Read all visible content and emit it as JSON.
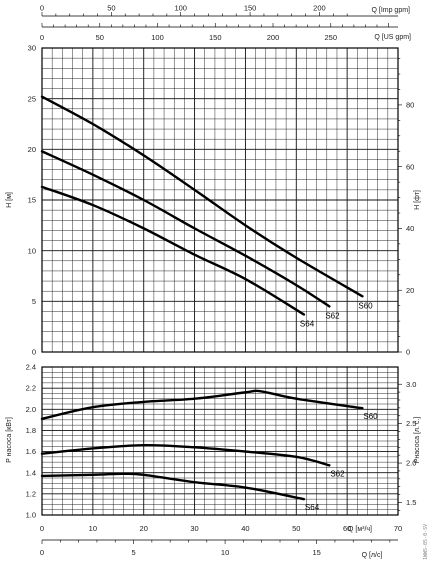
{
  "chart_data": [
    {
      "type": "line",
      "title": "",
      "xlabel": "Q [м³/ч]",
      "ylabel": "H [м]",
      "y2label": "H [фт]",
      "x2label_top": "Q [US gpm]",
      "x3label_top": "Q [Imp gpm]",
      "xlim": [
        0,
        70
      ],
      "ylim": [
        0,
        30
      ],
      "y2lim": [
        0,
        98.4
      ],
      "grid": true,
      "series": [
        {
          "name": "S60",
          "x": [
            0,
            10,
            20,
            30,
            40,
            50,
            63
          ],
          "y": [
            25.2,
            22.5,
            19.4,
            16.0,
            12.5,
            9.3,
            5.5
          ]
        },
        {
          "name": "S62",
          "x": [
            0,
            10,
            20,
            30,
            40,
            50,
            56.5
          ],
          "y": [
            19.8,
            17.5,
            15.0,
            12.2,
            9.5,
            6.6,
            4.5
          ]
        },
        {
          "name": "S64",
          "x": [
            0,
            10,
            20,
            30,
            40,
            51.5
          ],
          "y": [
            16.3,
            14.5,
            12.2,
            9.6,
            7.2,
            3.7
          ]
        }
      ]
    },
    {
      "type": "line",
      "title": "",
      "xlabel": "Q [м³/ч]",
      "x2label": "Q [л/с]",
      "ylabel": "P насоса [кВт]",
      "y2label": "Pнасоса [л. с.]",
      "xlim": [
        0,
        70
      ],
      "ylim": [
        1.0,
        2.4
      ],
      "grid": true,
      "series": [
        {
          "name": "S60",
          "x": [
            0,
            10,
            20,
            30,
            40,
            43,
            50,
            63
          ],
          "y": [
            1.91,
            2.02,
            2.07,
            2.1,
            2.16,
            2.17,
            2.1,
            2.01
          ]
        },
        {
          "name": "S62",
          "x": [
            0,
            10,
            20,
            30,
            40,
            50,
            56.5
          ],
          "y": [
            1.58,
            1.63,
            1.66,
            1.64,
            1.6,
            1.55,
            1.47
          ]
        },
        {
          "name": "S64",
          "x": [
            0,
            10,
            16,
            20,
            30,
            40,
            51.5
          ],
          "y": [
            1.37,
            1.38,
            1.39,
            1.38,
            1.31,
            1.26,
            1.15
          ]
        }
      ]
    }
  ],
  "axes": {
    "top_imp_gpm_ticks": [
      "0",
      "50",
      "100",
      "150",
      "200"
    ],
    "top_us_gpm_ticks": [
      "0",
      "50",
      "100",
      "150",
      "200",
      "250"
    ],
    "h_m_ticks": [
      "0",
      "5",
      "10",
      "15",
      "20",
      "25",
      "30"
    ],
    "h_ft_ticks": [
      "0",
      "20",
      "40",
      "60",
      "80"
    ],
    "p_kw_ticks": [
      "1.0",
      "1.2",
      "1.4",
      "1.6",
      "1.8",
      "2.0",
      "2.2",
      "2.4"
    ],
    "p_hp_ticks": [
      "1.5",
      "2.0",
      "2.5",
      "3.0"
    ],
    "q_m3h_ticks": [
      "0",
      "10",
      "20",
      "30",
      "40",
      "50",
      "60",
      "70"
    ],
    "q_ls_ticks": [
      "0",
      "5",
      "10",
      "15"
    ]
  },
  "side_code": "1WWS-05-0-SV"
}
